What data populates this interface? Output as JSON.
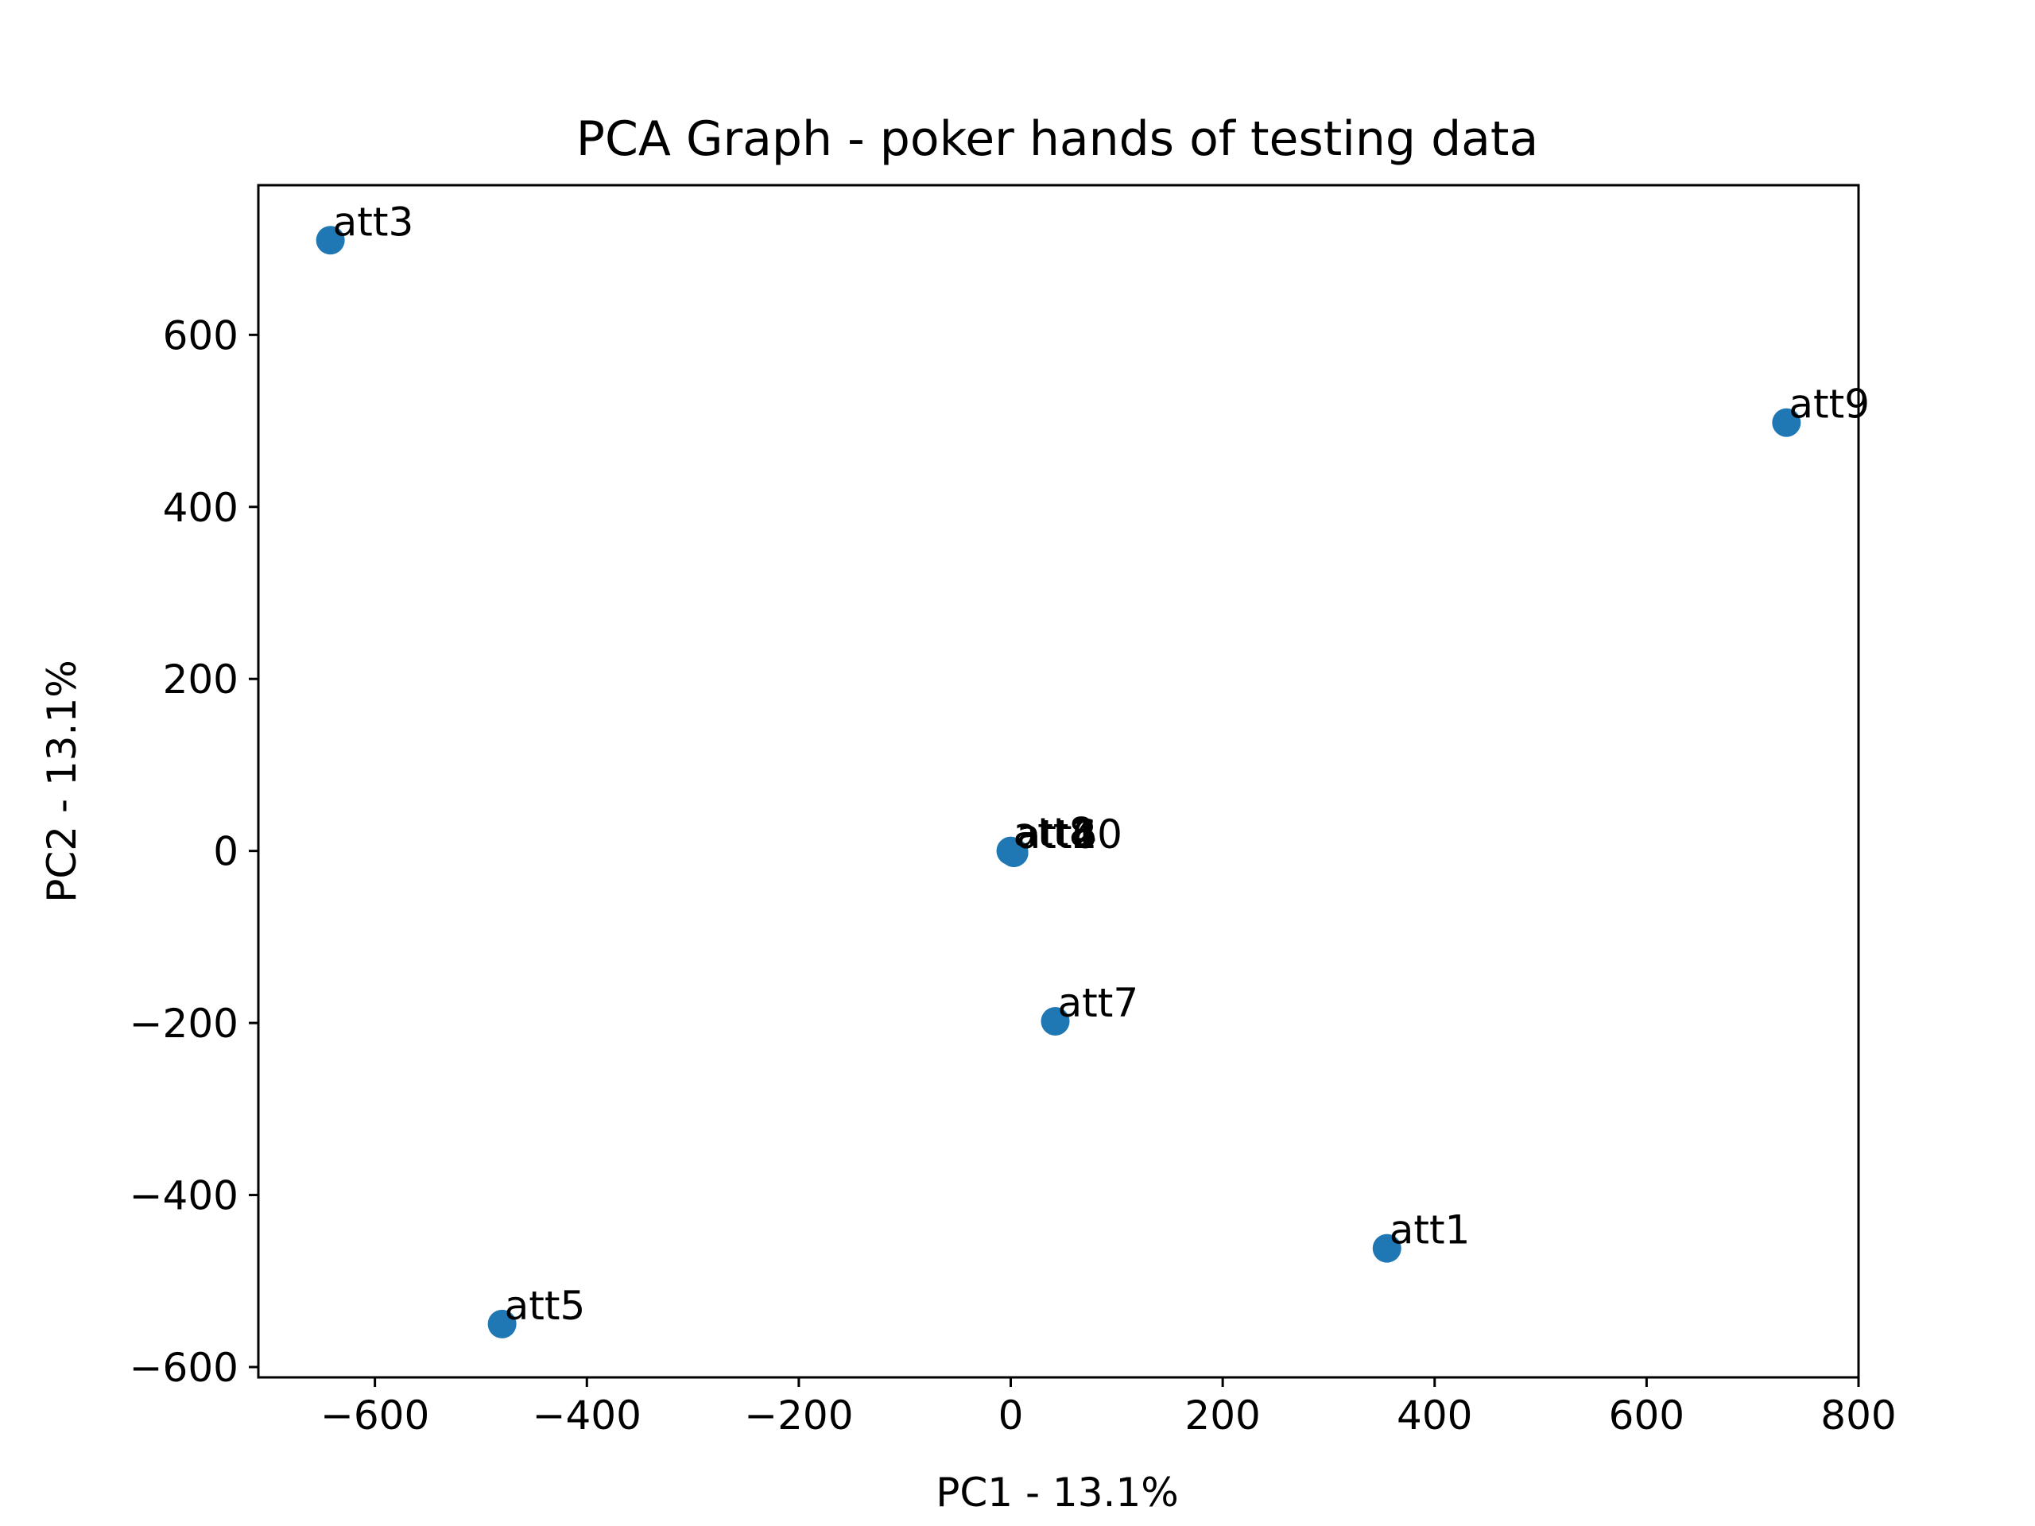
{
  "chart_data": {
    "type": "scatter",
    "title": "PCA Graph - poker hands of testing data",
    "xlabel": "PC1 - 13.1%",
    "ylabel": "PC2 - 13.1%",
    "xlim": [
      -710,
      800
    ],
    "ylim": [
      -612,
      774
    ],
    "xticks": [
      -600,
      -400,
      -200,
      0,
      200,
      400,
      600,
      800
    ],
    "yticks": [
      -600,
      -400,
      -200,
      0,
      200,
      400,
      600
    ],
    "xtick_labels": [
      "−600",
      "−400",
      "−200",
      "0",
      "200",
      "400",
      "600",
      "800"
    ],
    "ytick_labels": [
      "−600",
      "−400",
      "−200",
      "0",
      "200",
      "400",
      "600"
    ],
    "marker_color": "#1f77b4",
    "grid": false,
    "points": [
      {
        "label": "att3",
        "x": -642,
        "y": 710
      },
      {
        "label": "att9",
        "x": 732,
        "y": 498
      },
      {
        "label": "att2",
        "x": 3,
        "y": -2
      },
      {
        "label": "att4",
        "x": 3,
        "y": -2
      },
      {
        "label": "att6",
        "x": 3,
        "y": -2
      },
      {
        "label": "att8",
        "x": 0,
        "y": 0
      },
      {
        "label": "att10",
        "x": 3,
        "y": -2
      },
      {
        "label": "att7",
        "x": 42,
        "y": -198
      },
      {
        "label": "att1",
        "x": 355,
        "y": -462
      },
      {
        "label": "att5",
        "x": -480,
        "y": -550
      }
    ]
  }
}
